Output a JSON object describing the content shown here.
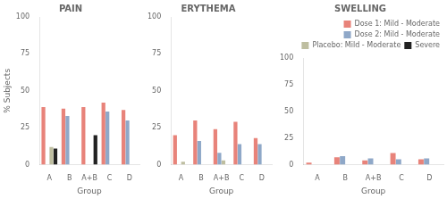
{
  "chart_data": [
    {
      "type": "bar",
      "title": "PAIN",
      "xlabel": "Group",
      "ylabel": "% Subjects",
      "categories": [
        "A",
        "B",
        "A+B",
        "C",
        "D"
      ],
      "series": [
        {
          "name": "Dose 1: Mild - Moderate",
          "color": "#E8837A",
          "values": [
            39,
            38,
            39,
            42,
            37
          ]
        },
        {
          "name": "Dose 2: Mild - Moderate",
          "color": "#8FA8C8",
          "values": [
            0,
            33,
            0,
            36,
            30
          ]
        },
        {
          "name": "Placebo: Mild - Moderate",
          "color": "#BEBEA0",
          "values": [
            12,
            0,
            0,
            0,
            0
          ]
        },
        {
          "name": "Severe",
          "color": "#222222",
          "values": [
            11,
            0,
            20,
            0,
            0
          ]
        }
      ],
      "ylim": [
        0,
        100
      ],
      "yticks": [
        0,
        25,
        50,
        75,
        100
      ],
      "grid": false
    },
    {
      "type": "bar",
      "title": "ERYTHEMA",
      "xlabel": "Group",
      "categories": [
        "A",
        "B",
        "A+B",
        "C",
        "D"
      ],
      "series": [
        {
          "name": "Dose 1: Mild - Moderate",
          "color": "#E8837A",
          "values": [
            20,
            30,
            24,
            29,
            18
          ]
        },
        {
          "name": "Dose 2: Mild - Moderate",
          "color": "#8FA8C8",
          "values": [
            0,
            16,
            8,
            14,
            14
          ]
        },
        {
          "name": "Placebo: Mild - Moderate",
          "color": "#BEBEA0",
          "values": [
            2,
            0,
            3,
            0,
            0
          ]
        },
        {
          "name": "Severe",
          "color": "#222222",
          "values": [
            0,
            0,
            0,
            0,
            0
          ]
        }
      ],
      "ylim": [
        0,
        100
      ],
      "yticks": [
        0,
        25,
        50,
        75,
        100
      ],
      "grid": false
    },
    {
      "type": "bar",
      "title": "SWELLING",
      "xlabel": "Group",
      "categories": [
        "A",
        "B",
        "A+B",
        "C",
        "D"
      ],
      "series": [
        {
          "name": "Dose 1: Mild - Moderate",
          "color": "#E8837A",
          "values": [
            2,
            7,
            4,
            11,
            5
          ]
        },
        {
          "name": "Dose 2: Mild - Moderate",
          "color": "#8FA8C8",
          "values": [
            0,
            8,
            6,
            5,
            6
          ]
        },
        {
          "name": "Placebo: Mild - Moderate",
          "color": "#BEBEA0",
          "values": [
            0,
            0,
            0,
            0,
            0
          ]
        },
        {
          "name": "Severe",
          "color": "#222222",
          "values": [
            0,
            0,
            0,
            0,
            0
          ]
        }
      ],
      "ylim": [
        0,
        100
      ],
      "yticks": [
        0,
        25,
        50,
        75,
        100
      ],
      "grid": false,
      "legend": "upper right"
    }
  ]
}
